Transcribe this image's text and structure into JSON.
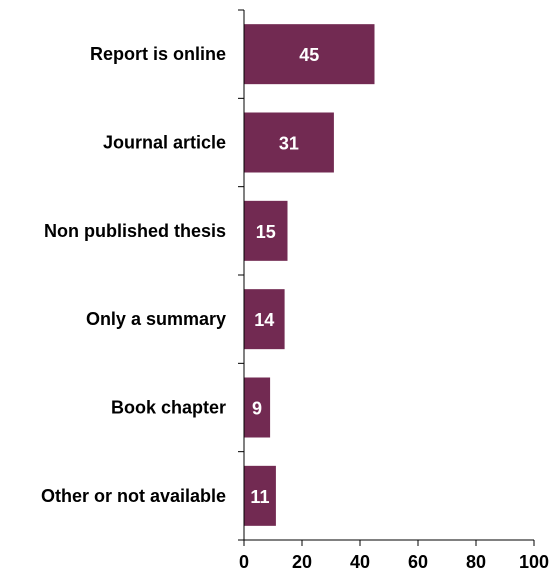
{
  "chart_data": {
    "type": "bar",
    "orientation": "horizontal",
    "categories": [
      "Report is online",
      "Journal article",
      "Non published thesis",
      "Only a summary",
      "Book chapter",
      "Other or not available"
    ],
    "values": [
      45,
      31,
      15,
      14,
      9,
      11
    ],
    "data_labels": [
      "45",
      "31",
      "15",
      "14",
      "9",
      "11"
    ],
    "title": "",
    "xlabel": "",
    "ylabel": "",
    "xlim": [
      0,
      100
    ],
    "x_ticks": [
      0,
      20,
      40,
      60,
      80,
      100
    ],
    "x_tick_labels": [
      "0",
      "20",
      "40",
      "60",
      "80",
      "100"
    ],
    "grid": false,
    "legend": "none",
    "bar_color": "#722a52",
    "data_label_color": "#ffffff"
  }
}
